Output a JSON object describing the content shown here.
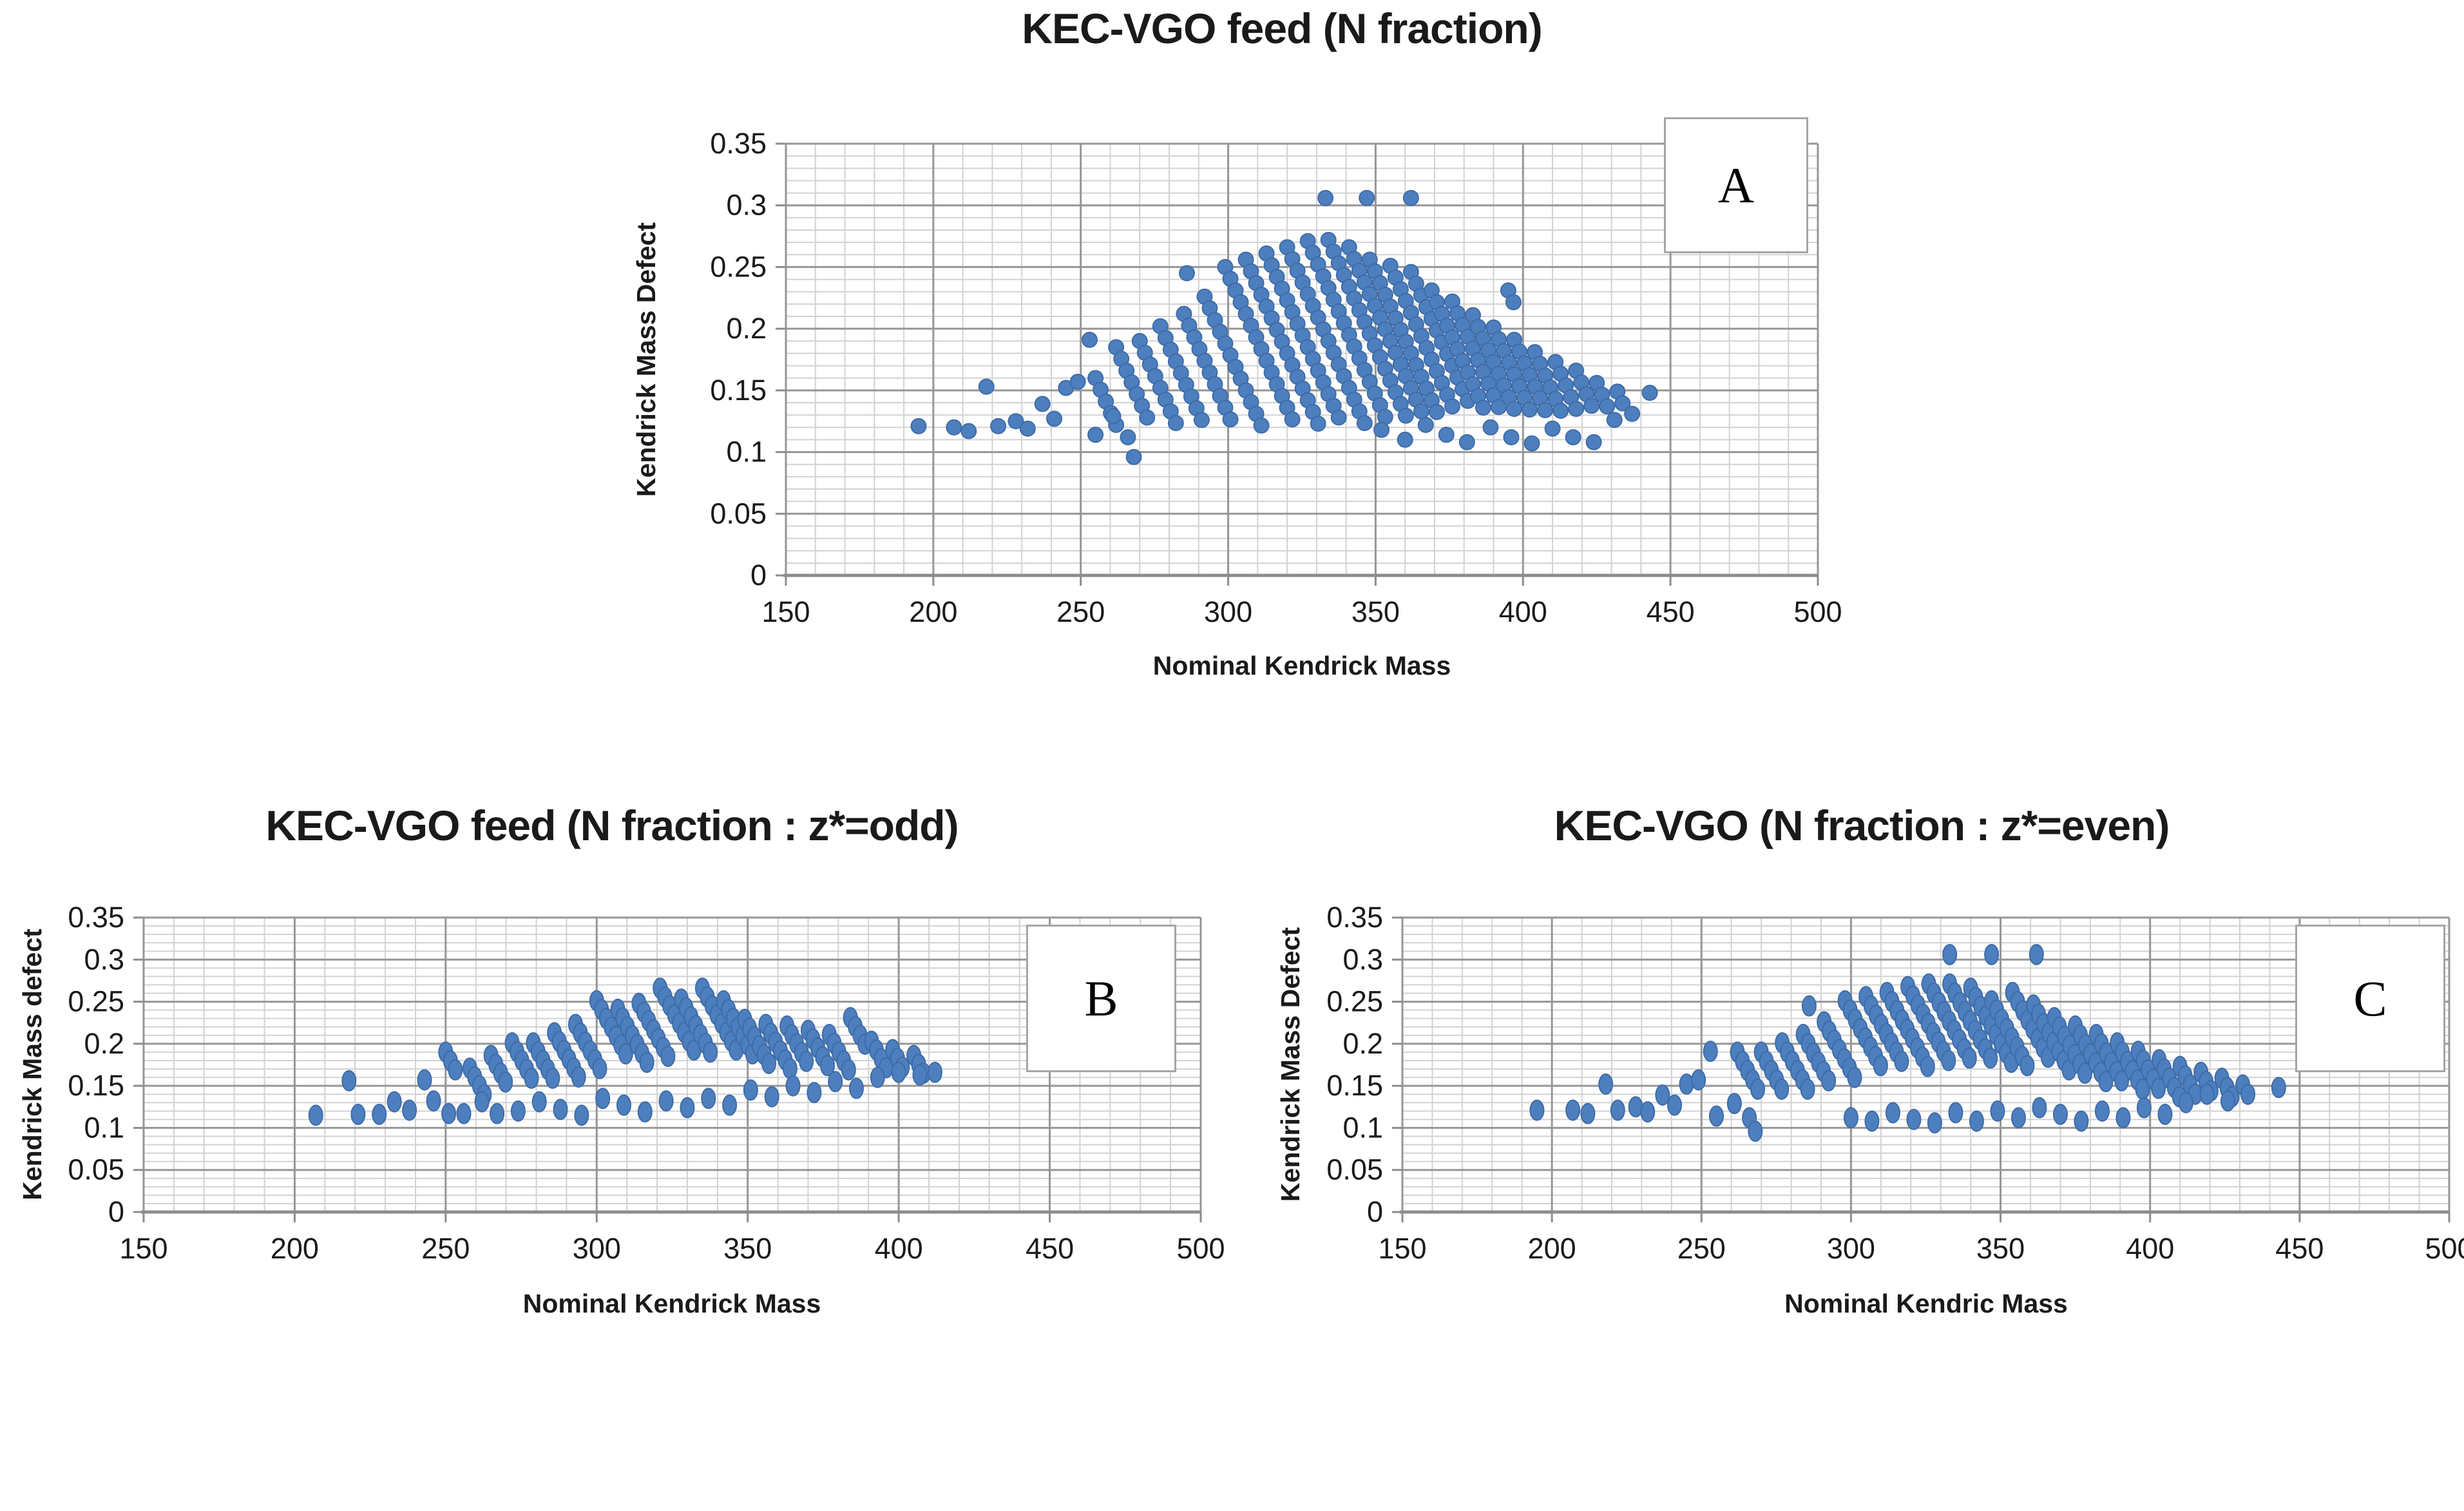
{
  "style": {
    "background": "#ffffff",
    "grid_minor_color": "#d2d2d2",
    "grid_major_color": "#969696",
    "axis_line_color": "#8c8c8c",
    "marker_fill": "#4d7fbe",
    "marker_edge": "#3f6ba6",
    "text_color": "#1a1a1a"
  },
  "chart_data": [
    {
      "panel_label": "A",
      "type": "scatter",
      "title": "KEC-VGO feed (N fraction)",
      "xlabel": "Nominal Kendrick Mass",
      "ylabel": "Kendrick Mass Defect",
      "xlim": [
        150,
        500
      ],
      "ylim": [
        0,
        0.35
      ],
      "x_major": 50,
      "x_minor": 10,
      "y_major": 0.05,
      "y_minor": 0.01,
      "x_ticks": [
        "150",
        "200",
        "250",
        "300",
        "350",
        "400",
        "450",
        "500"
      ],
      "y_ticks": [
        "0",
        "0.05",
        "0.1",
        "0.15",
        "0.2",
        "0.25",
        "0.3",
        "0.35"
      ],
      "legend": "none",
      "grid": "on",
      "marker": {
        "rx": 11.5,
        "ry": 11.5
      },
      "stripe_step": {
        "dx": 1.75,
        "dy": -0.0095
      },
      "stripes": [
        [
          255,
          0.16,
          5
        ],
        [
          262,
          0.185,
          7
        ],
        [
          270,
          0.19,
          8
        ],
        [
          277,
          0.202,
          9
        ],
        [
          285,
          0.212,
          10
        ],
        [
          292,
          0.226,
          12
        ],
        [
          299,
          0.25,
          14
        ],
        [
          306,
          0.256,
          15
        ],
        [
          313,
          0.261,
          15
        ],
        [
          320,
          0.266,
          16
        ],
        [
          327,
          0.271,
          16
        ],
        [
          334,
          0.272,
          16
        ],
        [
          341,
          0.266,
          15
        ],
        [
          348,
          0.256,
          14
        ],
        [
          355,
          0.251,
          13
        ],
        [
          362,
          0.246,
          12
        ],
        [
          369,
          0.231,
          11
        ],
        [
          376,
          0.222,
          10
        ],
        [
          383,
          0.211,
          9
        ],
        [
          390,
          0.201,
          8
        ],
        [
          395,
          0.231,
          2
        ],
        [
          397,
          0.191,
          7
        ],
        [
          404,
          0.181,
          6
        ],
        [
          411,
          0.173,
          5
        ],
        [
          418,
          0.166,
          4
        ],
        [
          425,
          0.156,
          3
        ],
        [
          432,
          0.149,
          2
        ]
      ],
      "points": [
        [
          195,
          0.121
        ],
        [
          207,
          0.12
        ],
        [
          212,
          0.117
        ],
        [
          218,
          0.153
        ],
        [
          222,
          0.121
        ],
        [
          228,
          0.125
        ],
        [
          232,
          0.119
        ],
        [
          237,
          0.139
        ],
        [
          241,
          0.127
        ],
        [
          245,
          0.152
        ],
        [
          249,
          0.157
        ],
        [
          253,
          0.191
        ],
        [
          255,
          0.114
        ],
        [
          261,
          0.129
        ],
        [
          266,
          0.112
        ],
        [
          268,
          0.096
        ],
        [
          286,
          0.245
        ],
        [
          333,
          0.306
        ],
        [
          347,
          0.306
        ],
        [
          362,
          0.306
        ],
        [
          352,
          0.118
        ],
        [
          360,
          0.11
        ],
        [
          367,
          0.122
        ],
        [
          374,
          0.114
        ],
        [
          381,
          0.108
        ],
        [
          389,
          0.12
        ],
        [
          396,
          0.112
        ],
        [
          403,
          0.107
        ],
        [
          410,
          0.119
        ],
        [
          417,
          0.112
        ],
        [
          424,
          0.108
        ],
        [
          431,
          0.126
        ],
        [
          437,
          0.131
        ],
        [
          443,
          0.148
        ]
      ]
    },
    {
      "panel_label": "B",
      "type": "scatter",
      "title": "KEC-VGO feed (N fraction : z*=odd)",
      "xlabel": "Nominal Kendrick Mass",
      "ylabel": "Kendrick Mass defect",
      "xlim": [
        150,
        500
      ],
      "ylim": [
        0,
        0.35
      ],
      "x_major": 50,
      "x_minor": 10,
      "y_major": 0.05,
      "y_minor": 0.01,
      "x_ticks": [
        "150",
        "200",
        "250",
        "300",
        "350",
        "400",
        "450",
        "500"
      ],
      "y_ticks": [
        "0",
        "0.05",
        "0.1",
        "0.15",
        "0.2",
        "0.25",
        "0.3",
        "0.35"
      ],
      "legend": "none",
      "grid": "on",
      "marker": {
        "rx": 10.5,
        "ry": 15.5
      },
      "stripe_step": {
        "dx": 1.6,
        "dy": -0.0105
      },
      "stripes": [
        [
          250,
          0.19,
          3
        ],
        [
          258,
          0.171,
          4
        ],
        [
          265,
          0.186,
          4
        ],
        [
          272,
          0.201,
          5
        ],
        [
          279,
          0.201,
          5
        ],
        [
          286,
          0.213,
          6
        ],
        [
          293,
          0.223,
          6
        ],
        [
          300,
          0.251,
          7
        ],
        [
          307,
          0.241,
          7
        ],
        [
          314,
          0.248,
          7
        ],
        [
          321,
          0.266,
          8
        ],
        [
          328,
          0.253,
          7
        ],
        [
          335,
          0.266,
          8
        ],
        [
          342,
          0.251,
          7
        ],
        [
          349,
          0.229,
          6
        ],
        [
          356,
          0.223,
          6
        ],
        [
          363,
          0.221,
          5
        ],
        [
          370,
          0.216,
          5
        ],
        [
          377,
          0.211,
          5
        ],
        [
          384,
          0.231,
          4
        ],
        [
          391,
          0.203,
          4
        ],
        [
          398,
          0.193,
          3
        ],
        [
          405,
          0.186,
          3
        ]
      ],
      "points": [
        [
          207,
          0.115
        ],
        [
          218,
          0.156
        ],
        [
          221,
          0.116
        ],
        [
          228,
          0.116
        ],
        [
          233,
          0.131
        ],
        [
          238,
          0.121
        ],
        [
          243,
          0.157
        ],
        [
          246,
          0.132
        ],
        [
          251,
          0.117
        ],
        [
          256,
          0.117
        ],
        [
          262,
          0.131
        ],
        [
          267,
          0.117
        ],
        [
          274,
          0.12
        ],
        [
          281,
          0.131
        ],
        [
          288,
          0.122
        ],
        [
          295,
          0.115
        ],
        [
          302,
          0.135
        ],
        [
          309,
          0.127
        ],
        [
          316,
          0.119
        ],
        [
          323,
          0.132
        ],
        [
          330,
          0.124
        ],
        [
          337,
          0.135
        ],
        [
          344,
          0.127
        ],
        [
          351,
          0.145
        ],
        [
          358,
          0.137
        ],
        [
          365,
          0.15
        ],
        [
          372,
          0.142
        ],
        [
          379,
          0.155
        ],
        [
          386,
          0.147
        ],
        [
          393,
          0.16
        ],
        [
          400,
          0.166
        ],
        [
          407,
          0.163
        ],
        [
          412,
          0.166
        ]
      ]
    },
    {
      "panel_label": "C",
      "type": "scatter",
      "title": "KEC-VGO (N fraction : z*=even)",
      "xlabel": "Nominal Kendric Mass",
      "ylabel": "Kendrick Mass Defect",
      "xlim": [
        150,
        500
      ],
      "ylim": [
        0,
        0.35
      ],
      "x_major": 50,
      "x_minor": 10,
      "y_major": 0.05,
      "y_minor": 0.01,
      "x_ticks": [
        "150",
        "200",
        "250",
        "300",
        "350",
        "400",
        "450",
        "500"
      ],
      "y_ticks": [
        "0",
        "0.05",
        "0.1",
        "0.15",
        "0.2",
        "0.25",
        "0.3",
        "0.35"
      ],
      "legend": "none",
      "grid": "on",
      "marker": {
        "rx": 10.5,
        "ry": 15.5
      },
      "stripe_step": {
        "dx": 1.7,
        "dy": -0.011
      },
      "stripes": [
        [
          262,
          0.19,
          5
        ],
        [
          270,
          0.19,
          5
        ],
        [
          277,
          0.201,
          6
        ],
        [
          284,
          0.211,
          6
        ],
        [
          291,
          0.226,
          7
        ],
        [
          298,
          0.251,
          8
        ],
        [
          305,
          0.256,
          8
        ],
        [
          312,
          0.261,
          9
        ],
        [
          319,
          0.268,
          9
        ],
        [
          326,
          0.271,
          9
        ],
        [
          333,
          0.271,
          9
        ],
        [
          340,
          0.266,
          9
        ],
        [
          347,
          0.251,
          8
        ],
        [
          354,
          0.261,
          8
        ],
        [
          361,
          0.246,
          8
        ],
        [
          368,
          0.231,
          7
        ],
        [
          375,
          0.221,
          7
        ],
        [
          382,
          0.211,
          6
        ],
        [
          389,
          0.201,
          6
        ],
        [
          396,
          0.191,
          5
        ],
        [
          403,
          0.181,
          5
        ],
        [
          410,
          0.173,
          4
        ],
        [
          417,
          0.166,
          3
        ],
        [
          424,
          0.159,
          3
        ],
        [
          431,
          0.151,
          2
        ]
      ],
      "points": [
        [
          195,
          0.121
        ],
        [
          207,
          0.121
        ],
        [
          212,
          0.117
        ],
        [
          218,
          0.152
        ],
        [
          222,
          0.121
        ],
        [
          228,
          0.125
        ],
        [
          232,
          0.119
        ],
        [
          237,
          0.139
        ],
        [
          241,
          0.127
        ],
        [
          245,
          0.152
        ],
        [
          249,
          0.157
        ],
        [
          253,
          0.191
        ],
        [
          255,
          0.114
        ],
        [
          261,
          0.129
        ],
        [
          266,
          0.112
        ],
        [
          268,
          0.096
        ],
        [
          286,
          0.245
        ],
        [
          333,
          0.306
        ],
        [
          347,
          0.306
        ],
        [
          362,
          0.306
        ],
        [
          300,
          0.112
        ],
        [
          307,
          0.108
        ],
        [
          314,
          0.118
        ],
        [
          321,
          0.11
        ],
        [
          328,
          0.106
        ],
        [
          335,
          0.118
        ],
        [
          342,
          0.108
        ],
        [
          349,
          0.12
        ],
        [
          356,
          0.112
        ],
        [
          363,
          0.124
        ],
        [
          370,
          0.116
        ],
        [
          377,
          0.108
        ],
        [
          384,
          0.12
        ],
        [
          391,
          0.112
        ],
        [
          398,
          0.124
        ],
        [
          405,
          0.116
        ],
        [
          412,
          0.13
        ],
        [
          419,
          0.14
        ],
        [
          426,
          0.132
        ],
        [
          443,
          0.148
        ]
      ]
    }
  ]
}
